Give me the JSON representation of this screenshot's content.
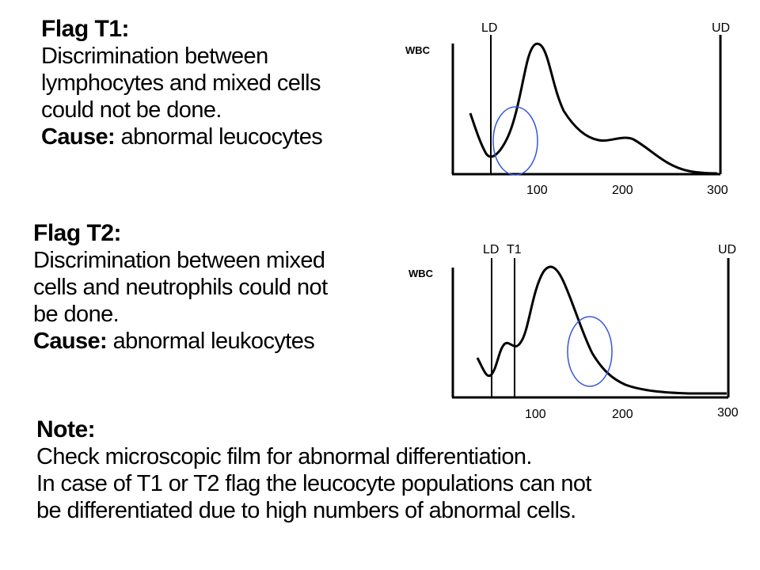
{
  "flag_t1": {
    "heading": "Flag T1:",
    "lines": [
      "Discrimination between",
      "lymphocytes and mixed cells",
      "could not be done."
    ],
    "cause_label": "Cause:",
    "cause_text": " abnormal leucocytes"
  },
  "flag_t2": {
    "heading": "Flag T2:",
    "lines": [
      "Discrimination between mixed",
      "cells and neutrophils could not",
      "be done."
    ],
    "cause_label": "Cause:",
    "cause_text": " abnormal leukocytes"
  },
  "note": {
    "heading": "Note:",
    "lines": [
      "Check microscopic film for abnormal differentiation.",
      "In case of T1 or T2 flag the leucocyte populations can not",
      "be differentiated due to high numbers of abnormal cells."
    ]
  },
  "chart_data": [
    {
      "type": "line",
      "ylabel": "WBC",
      "x_ticks": [
        "100",
        "200",
        "300"
      ],
      "markers": [
        "LD",
        "UD"
      ],
      "highlight_color": "#3355dd",
      "curve_color": "#000000"
    },
    {
      "type": "line",
      "ylabel": "WBC",
      "x_ticks": [
        "100",
        "200",
        "300"
      ],
      "markers": [
        "LD",
        "T1",
        "UD"
      ],
      "highlight_color": "#3355dd",
      "curve_color": "#000000"
    }
  ]
}
